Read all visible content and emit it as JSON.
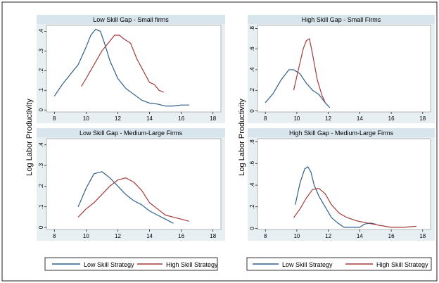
{
  "colors": {
    "low": "#2f5f8a",
    "high": "#a43a3a",
    "panel_bg": "#e8eff3",
    "title_bg": "#d9e5ec",
    "plot_bg": "#ffffff"
  },
  "ylabel": "Log Labor Productivity",
  "legend": {
    "low_label": "Low Skill Strategy",
    "high_label": "High Skill Strategy"
  },
  "chart_data": [
    {
      "type": "line",
      "title": "Low Skill Gap - Small firms",
      "xlim": [
        7.5,
        18.5
      ],
      "ylim": [
        -0.01,
        0.43
      ],
      "xticks": [
        8,
        10,
        12,
        14,
        16,
        18
      ],
      "yticks": [
        0,
        0.1,
        0.2,
        0.3,
        0.4
      ],
      "ytick_labels": [
        "0",
        ".1",
        ".2",
        ".3",
        ".4"
      ],
      "series": [
        {
          "name": "Low Skill Strategy",
          "x": [
            8,
            8.5,
            9,
            9.5,
            10,
            10.3,
            10.6,
            10.9,
            11.2,
            11.5,
            12,
            12.5,
            13,
            13.5,
            14,
            14.5,
            15,
            15.5,
            16,
            16.5
          ],
          "y": [
            0.07,
            0.13,
            0.18,
            0.23,
            0.32,
            0.38,
            0.41,
            0.4,
            0.33,
            0.25,
            0.16,
            0.11,
            0.08,
            0.05,
            0.035,
            0.03,
            0.02,
            0.02,
            0.025,
            0.025
          ]
        },
        {
          "name": "High Skill Strategy",
          "x": [
            9.7,
            10,
            10.5,
            11,
            11.5,
            11.8,
            12.1,
            12.4,
            12.8,
            13.2,
            13.6,
            14,
            14.3,
            14.6,
            14.9
          ],
          "y": [
            0.12,
            0.16,
            0.23,
            0.3,
            0.35,
            0.38,
            0.38,
            0.36,
            0.34,
            0.26,
            0.2,
            0.14,
            0.13,
            0.1,
            0.09
          ]
        }
      ]
    },
    {
      "type": "line",
      "title": "High Skill Gap - Small Firms",
      "xlim": [
        7.5,
        18.5
      ],
      "ylim": [
        -0.01,
        0.83
      ],
      "xticks": [
        8,
        10,
        12,
        14,
        16,
        18
      ],
      "yticks": [
        0,
        0.2,
        0.4,
        0.6,
        0.8
      ],
      "ytick_labels": [
        "0",
        ".2",
        ".4",
        ".6",
        ".8"
      ],
      "series": [
        {
          "name": "Low Skill Strategy",
          "x": [
            8,
            8.5,
            9,
            9.5,
            9.8,
            10.2,
            10.6,
            11,
            11.4,
            11.8,
            12.1
          ],
          "y": [
            0.08,
            0.17,
            0.3,
            0.4,
            0.4,
            0.36,
            0.27,
            0.2,
            0.16,
            0.08,
            0.03
          ]
        },
        {
          "name": "High Skill Strategy",
          "x": [
            9.8,
            10.1,
            10.4,
            10.6,
            10.8,
            11,
            11.3,
            11.6,
            11.8
          ],
          "y": [
            0.2,
            0.4,
            0.6,
            0.68,
            0.7,
            0.55,
            0.3,
            0.15,
            0.08
          ]
        }
      ]
    },
    {
      "type": "line",
      "title": "Low Skill Gap - Medium-Large Firms",
      "xlim": [
        7.5,
        18.5
      ],
      "ylim": [
        -0.01,
        0.43
      ],
      "xticks": [
        8,
        10,
        12,
        14,
        16,
        18
      ],
      "yticks": [
        0,
        0.1,
        0.2,
        0.3,
        0.4
      ],
      "ytick_labels": [
        "0",
        ".1",
        ".2",
        ".3",
        ".4"
      ],
      "series": [
        {
          "name": "Low Skill Strategy",
          "x": [
            9.5,
            10,
            10.5,
            11,
            11.5,
            12,
            12.5,
            13,
            13.5,
            14,
            14.5,
            15,
            15.5
          ],
          "y": [
            0.1,
            0.19,
            0.26,
            0.27,
            0.24,
            0.2,
            0.16,
            0.13,
            0.11,
            0.08,
            0.06,
            0.04,
            0.02
          ]
        },
        {
          "name": "High Skill Strategy",
          "x": [
            9.5,
            10,
            10.5,
            11,
            11.5,
            12,
            12.5,
            13,
            13.5,
            14,
            14.5,
            15,
            15.5,
            16,
            16.5
          ],
          "y": [
            0.05,
            0.09,
            0.12,
            0.16,
            0.2,
            0.23,
            0.24,
            0.22,
            0.18,
            0.12,
            0.09,
            0.06,
            0.05,
            0.04,
            0.03
          ]
        }
      ]
    },
    {
      "type": "line",
      "title": "High Skill Gap - Medium-Large Firms",
      "xlim": [
        7.5,
        18.5
      ],
      "ylim": [
        -0.01,
        0.83
      ],
      "xticks": [
        8,
        10,
        12,
        14,
        16,
        18
      ],
      "yticks": [
        0,
        0.2,
        0.4,
        0.6,
        0.8
      ],
      "ytick_labels": [
        "0",
        ".2",
        ".4",
        ".6",
        ".8"
      ],
      "series": [
        {
          "name": "Low Skill Strategy",
          "x": [
            9.9,
            10.2,
            10.5,
            10.7,
            10.9,
            11.1,
            11.4,
            11.8,
            12.2,
            12.6,
            13,
            13.5,
            14,
            14.3,
            14.7,
            15
          ],
          "y": [
            0.22,
            0.42,
            0.55,
            0.57,
            0.52,
            0.4,
            0.3,
            0.2,
            0.1,
            0.05,
            0.01,
            0.01,
            0.01,
            0.04,
            0.05,
            0.04
          ]
        },
        {
          "name": "High Skill Strategy",
          "x": [
            9.8,
            10.2,
            10.6,
            11,
            11.4,
            11.8,
            12.2,
            12.7,
            13.2,
            13.8,
            14.5,
            15.2,
            16,
            16.8,
            17.6
          ],
          "y": [
            0.1,
            0.18,
            0.28,
            0.36,
            0.37,
            0.32,
            0.22,
            0.14,
            0.1,
            0.07,
            0.05,
            0.03,
            0.01,
            0.01,
            0.02
          ]
        }
      ]
    }
  ]
}
